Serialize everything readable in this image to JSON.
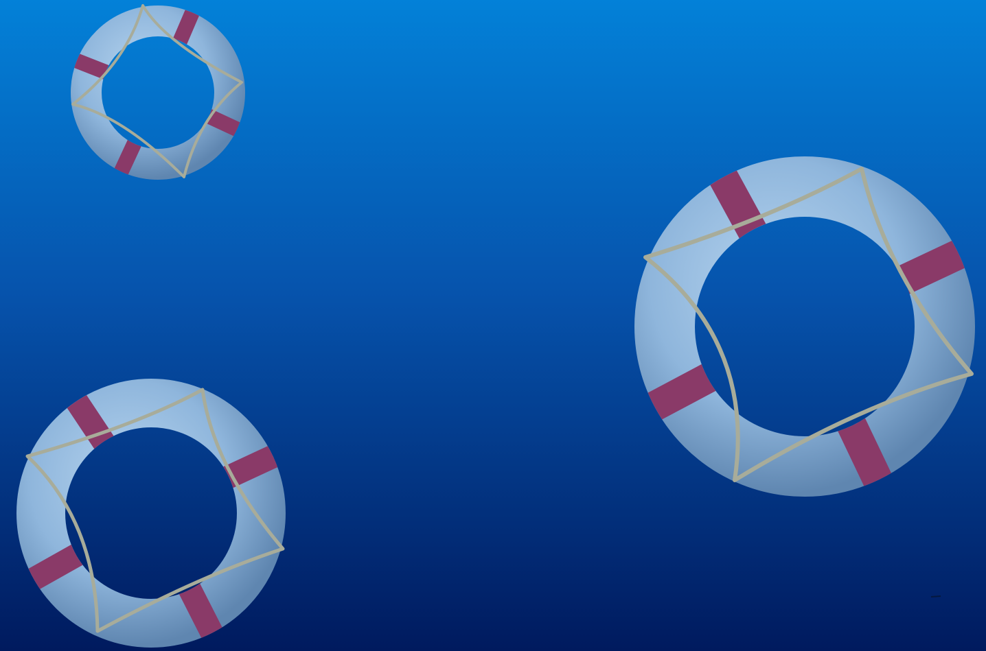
{
  "scene": {
    "subject": "lifebuoy-rings",
    "background_top_color": "#0381d8",
    "background_bottom_color": "#001a5e",
    "ring_color": "#8fb6dc",
    "ring_highlight_color": "#b5d3ee",
    "ring_shadow_color": "#5f86b0",
    "stripe_color": "#8a3a68",
    "rope_color": "#a8ac9a"
  }
}
